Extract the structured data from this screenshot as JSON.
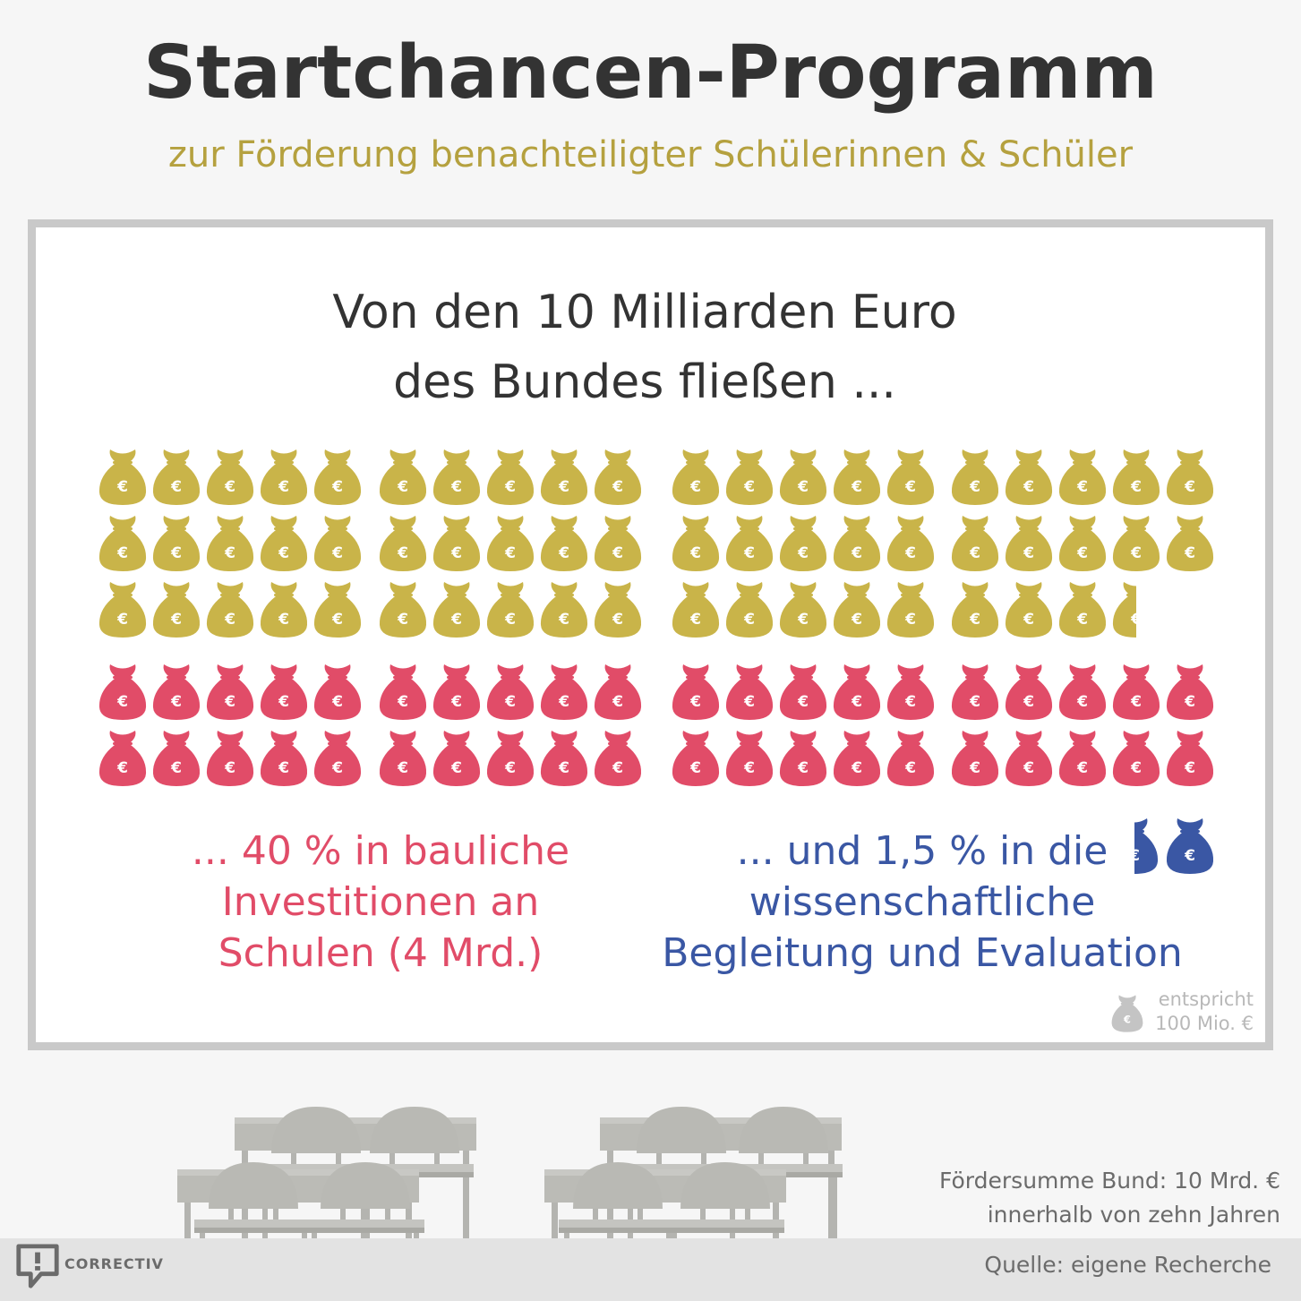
{
  "header": {
    "title": "Startchancen-Programm",
    "subtitle": "zur Förderung benachteiligter Schülerinnen & Schüler"
  },
  "panel": {
    "headline_line1": "Von den 10 Milliarden Euro",
    "headline_line2": "des Bundes fließen ...",
    "red_label_lines": [
      "... 40 % in bauliche",
      "Investitionen an",
      "Schulen (4 Mrd.)"
    ],
    "blue_label_lines": [
      "... und 1,5 % in die",
      "wissenschaftliche",
      "Begleitung und Evaluation"
    ],
    "legend_lines": [
      "entspricht",
      "100 Mio. €"
    ]
  },
  "footer": {
    "note_lines": [
      "Fördersumme Bund: 10 Mrd. €",
      "innerhalb von zehn Jahren"
    ],
    "source": "Quelle: eigene Recherche",
    "logo_text": "CORRECTIV"
  },
  "colors": {
    "gold": "#c9b449",
    "red": "#e14c68",
    "blue": "#3a57a4",
    "legend": "#c4c4c4",
    "title": "#333333",
    "subtitle": "#b5a13f"
  },
  "icons": {
    "bag": "money-bag-icon",
    "legend": "money-bag-icon",
    "logo": "correctiv-logo-icon",
    "furniture": "school-desk-chair-icon"
  },
  "chart_data": {
    "type": "pictogram",
    "unit": "100 Mio. €",
    "total": 10,
    "series": [
      {
        "color_name": "gold",
        "icon_count": 58.5
      },
      {
        "color_name": "red",
        "icon_count": 40
      },
      {
        "color_name": "blue",
        "icon_count": 1.5
      }
    ]
  }
}
